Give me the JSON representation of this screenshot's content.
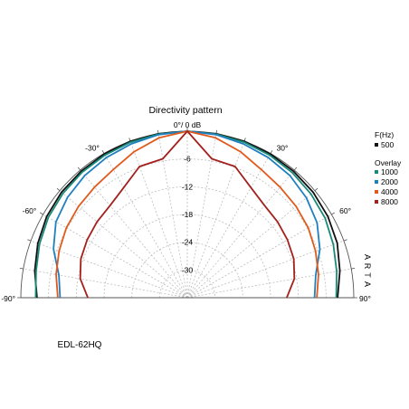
{
  "chart_data": {
    "type": "polar",
    "title": "Directivity pattern",
    "r_unit_label": "0°/ 0 dB",
    "radial_ticks": [
      "-6",
      "-12",
      "-18",
      "-24",
      "-30"
    ],
    "radial_values": [
      -6,
      -12,
      -18,
      -24,
      -30
    ],
    "r_range": [
      -36,
      0
    ],
    "angle_range": [
      -90,
      90
    ],
    "angle_tick_labels": [
      {
        "deg": -90,
        "label": "-90°"
      },
      {
        "deg": -60,
        "label": "-60°"
      },
      {
        "deg": -30,
        "label": "-30°"
      },
      {
        "deg": 30,
        "label": "30°"
      },
      {
        "deg": 60,
        "label": "60°"
      },
      {
        "deg": 90,
        "label": "90°"
      }
    ],
    "grid": true,
    "legend": {
      "header": "F(Hz)",
      "overlay_label": "Overlay",
      "placement": "right"
    },
    "watermark": "ARTA",
    "angles": [
      -90,
      -80,
      -70,
      -60,
      -50,
      -40,
      -30,
      -20,
      -10,
      0,
      10,
      20,
      30,
      40,
      50,
      60,
      70,
      80,
      90
    ],
    "series": [
      {
        "name": "500",
        "color": "#111111",
        "values": [
          -3.5,
          -2.5,
          -1.6,
          -0.9,
          -0.5,
          -0.3,
          -0.1,
          0,
          0,
          0,
          0,
          0,
          -0.1,
          -0.3,
          -0.5,
          -0.9,
          -1.5,
          -2.5,
          -3.5
        ]
      },
      {
        "name": "1000",
        "color": "#1a8a78",
        "values": [
          -3.2,
          -2.8,
          -2.0,
          -1.3,
          -0.9,
          -0.6,
          -0.4,
          -0.2,
          -0.1,
          0,
          -0.1,
          -0.2,
          -0.4,
          -0.7,
          -1.1,
          -1.6,
          -2.4,
          -3.2,
          -3.8
        ]
      },
      {
        "name": "2000",
        "color": "#1f7fc0",
        "values": [
          -8.5,
          -7.8,
          -5.2,
          -3.2,
          -2.2,
          -1.5,
          -1.0,
          -0.6,
          -0.2,
          0,
          -0.2,
          -0.6,
          -1.0,
          -1.5,
          -2.4,
          -3.6,
          -5.5,
          -7.8,
          -8.5
        ]
      },
      {
        "name": "4000",
        "color": "#e05a1c",
        "values": [
          -8.0,
          -7.2,
          -6.5,
          -5.8,
          -5.3,
          -4.8,
          -4.0,
          -2.4,
          -0.9,
          0,
          -0.9,
          -2.4,
          -4.0,
          -4.8,
          -5.3,
          -5.8,
          -6.5,
          -7.2,
          -8.0
        ]
      },
      {
        "name": "8000",
        "color": "#a3201c",
        "values": [
          -14.5,
          -12.5,
          -11.5,
          -11.0,
          -10.5,
          -10.0,
          -8.5,
          -5.8,
          -5.5,
          0,
          -5.5,
          -5.8,
          -8.5,
          -10.0,
          -10.5,
          -11.0,
          -11.5,
          -12.5,
          -14.5
        ]
      }
    ]
  },
  "caption": "EDL-62HQ"
}
